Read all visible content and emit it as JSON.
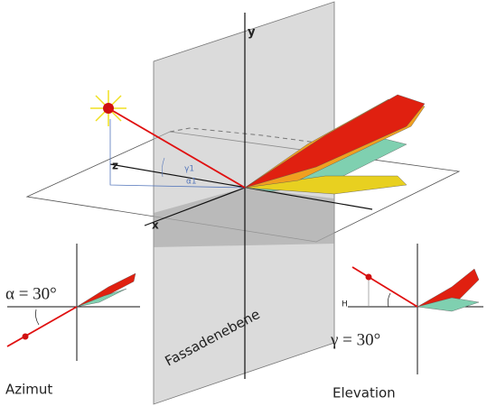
{
  "axes": {
    "y": "y",
    "z": "z",
    "x": "x"
  },
  "angles": {
    "gamma": "γ1",
    "alpha": "α1"
  },
  "plane_label": "Fassadenebene",
  "azimut_panel": {
    "equation": "α = 30°",
    "caption": "Azimut"
  },
  "elevation_panel": {
    "equation": "γ = 30°",
    "marker": "H",
    "caption": "Elevation"
  }
}
